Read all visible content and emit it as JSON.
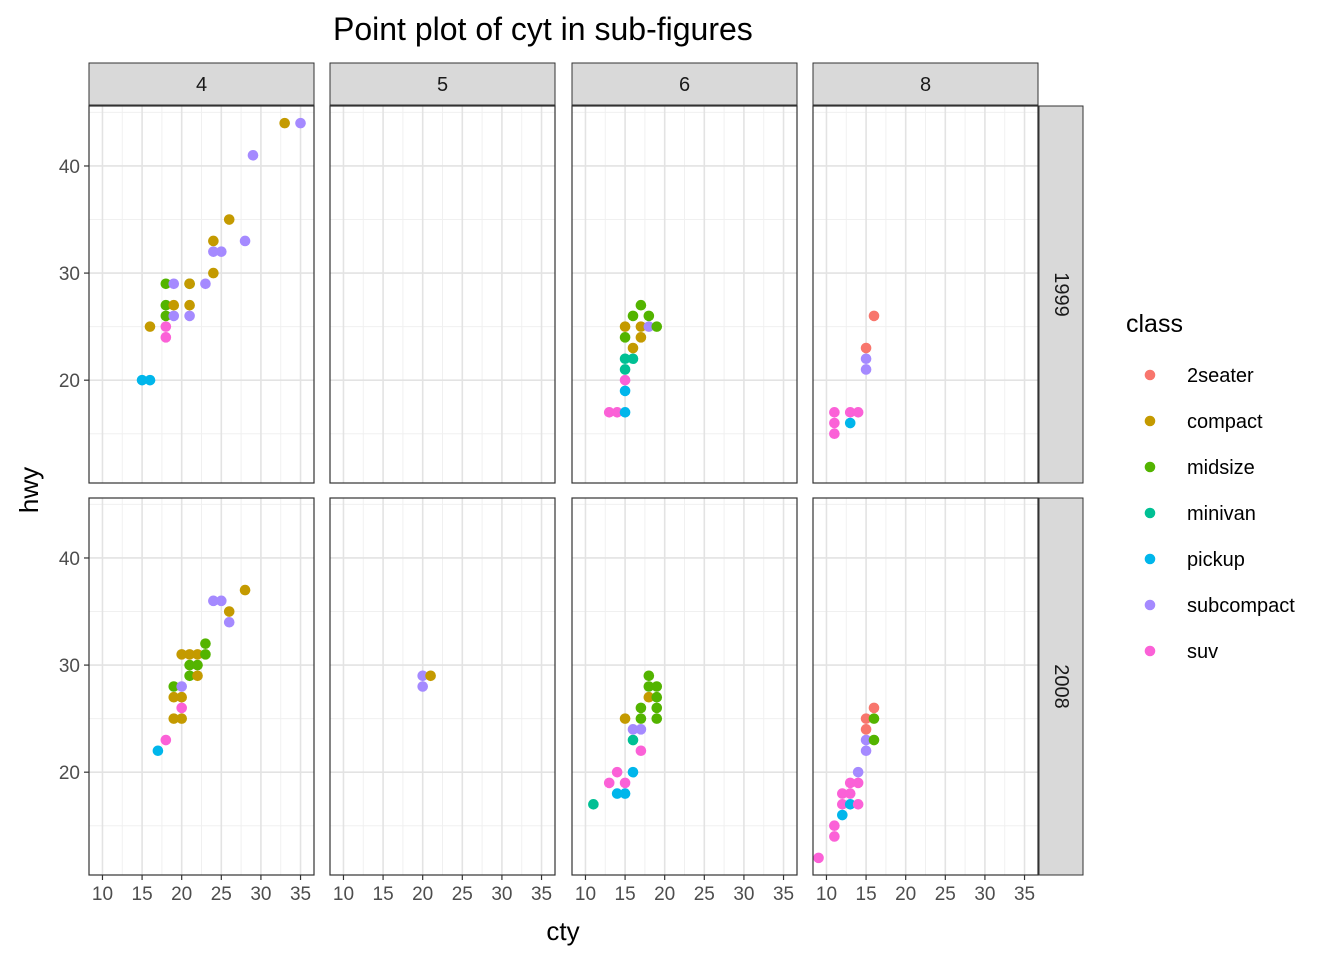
{
  "chart_data": {
    "type": "scatter",
    "title": "Point plot of cyt in sub-figures",
    "xlabel": "cty",
    "ylabel": "hwy",
    "xlim": [
      8.3,
      36.7
    ],
    "ylim": [
      10.4,
      45.6
    ],
    "xticks": [
      10,
      15,
      20,
      25,
      30,
      35
    ],
    "yticks": [
      20,
      30,
      40
    ],
    "grid": true,
    "facet_cols": [
      "4",
      "5",
      "6",
      "8"
    ],
    "facet_rows": [
      "1999",
      "2008"
    ],
    "legend": {
      "title": "class",
      "position": "right",
      "items": [
        {
          "name": "2seater",
          "color": "#F8766D"
        },
        {
          "name": "compact",
          "color": "#C49A00"
        },
        {
          "name": "midsize",
          "color": "#53B400"
        },
        {
          "name": "minivan",
          "color": "#00C094"
        },
        {
          "name": "pickup",
          "color": "#00B6EB"
        },
        {
          "name": "subcompact",
          "color": "#A58AFF"
        },
        {
          "name": "suv",
          "color": "#FB61D7"
        }
      ]
    },
    "panels": [
      {
        "cyl": "4",
        "year": "1999",
        "points": [
          [
            15,
            20,
            "pickup"
          ],
          [
            16,
            20,
            "pickup"
          ],
          [
            16,
            25,
            "compact"
          ],
          [
            18,
            24,
            "suv"
          ],
          [
            18,
            25,
            "suv"
          ],
          [
            18,
            26,
            "midsize"
          ],
          [
            18,
            27,
            "midsize"
          ],
          [
            18,
            29,
            "midsize"
          ],
          [
            19,
            26,
            "subcompact"
          ],
          [
            19,
            27,
            "compact"
          ],
          [
            19,
            29,
            "subcompact"
          ],
          [
            21,
            26,
            "subcompact"
          ],
          [
            21,
            27,
            "compact"
          ],
          [
            21,
            29,
            "midsize"
          ],
          [
            21,
            29,
            "compact"
          ],
          [
            23,
            29,
            "subcompact"
          ],
          [
            24,
            30,
            "compact"
          ],
          [
            24,
            32,
            "subcompact"
          ],
          [
            25,
            32,
            "subcompact"
          ],
          [
            24,
            33,
            "compact"
          ],
          [
            26,
            35,
            "compact"
          ],
          [
            28,
            33,
            "subcompact"
          ],
          [
            29,
            41,
            "subcompact"
          ],
          [
            33,
            44,
            "compact"
          ],
          [
            35,
            44,
            "subcompact"
          ]
        ]
      },
      {
        "cyl": "5",
        "year": "1999",
        "points": []
      },
      {
        "cyl": "6",
        "year": "1999",
        "points": [
          [
            13,
            17,
            "suv"
          ],
          [
            14,
            17,
            "suv"
          ],
          [
            15,
            17,
            "pickup"
          ],
          [
            15,
            19,
            "pickup"
          ],
          [
            15,
            20,
            "suv"
          ],
          [
            15,
            21,
            "minivan"
          ],
          [
            15,
            22,
            "minivan"
          ],
          [
            16,
            22,
            "minivan"
          ],
          [
            15,
            24,
            "midsize"
          ],
          [
            15,
            25,
            "compact"
          ],
          [
            16,
            23,
            "compact"
          ],
          [
            16,
            26,
            "midsize"
          ],
          [
            17,
            24,
            "compact"
          ],
          [
            17,
            25,
            "compact"
          ],
          [
            17,
            27,
            "midsize"
          ],
          [
            18,
            25,
            "subcompact"
          ],
          [
            18,
            26,
            "midsize"
          ],
          [
            19,
            25,
            "midsize"
          ]
        ]
      },
      {
        "cyl": "8",
        "year": "1999",
        "points": [
          [
            11,
            15,
            "suv"
          ],
          [
            11,
            16,
            "suv"
          ],
          [
            11,
            17,
            "suv"
          ],
          [
            13,
            16,
            "pickup"
          ],
          [
            13,
            17,
            "suv"
          ],
          [
            14,
            17,
            "suv"
          ],
          [
            15,
            21,
            "subcompact"
          ],
          [
            15,
            22,
            "subcompact"
          ],
          [
            15,
            23,
            "2seater"
          ],
          [
            16,
            26,
            "2seater"
          ]
        ]
      },
      {
        "cyl": "4",
        "year": "2008",
        "points": [
          [
            17,
            22,
            "pickup"
          ],
          [
            18,
            23,
            "suv"
          ],
          [
            19,
            25,
            "compact"
          ],
          [
            20,
            25,
            "compact"
          ],
          [
            19,
            27,
            "compact"
          ],
          [
            20,
            26,
            "suv"
          ],
          [
            20,
            27,
            "compact"
          ],
          [
            19,
            28,
            "midsize"
          ],
          [
            20,
            28,
            "subcompact"
          ],
          [
            21,
            29,
            "midsize"
          ],
          [
            22,
            29,
            "compact"
          ],
          [
            21,
            30,
            "midsize"
          ],
          [
            22,
            30,
            "midsize"
          ],
          [
            20,
            31,
            "compact"
          ],
          [
            21,
            31,
            "compact"
          ],
          [
            22,
            31,
            "compact"
          ],
          [
            23,
            31,
            "midsize"
          ],
          [
            23,
            32,
            "midsize"
          ],
          [
            26,
            34,
            "subcompact"
          ],
          [
            26,
            35,
            "compact"
          ],
          [
            24,
            36,
            "subcompact"
          ],
          [
            25,
            36,
            "subcompact"
          ],
          [
            28,
            37,
            "compact"
          ]
        ]
      },
      {
        "cyl": "5",
        "year": "2008",
        "points": [
          [
            20,
            28,
            "subcompact"
          ],
          [
            20,
            29,
            "subcompact"
          ],
          [
            21,
            29,
            "compact"
          ]
        ]
      },
      {
        "cyl": "6",
        "year": "2008",
        "points": [
          [
            11,
            17,
            "minivan"
          ],
          [
            13,
            19,
            "suv"
          ],
          [
            14,
            18,
            "pickup"
          ],
          [
            15,
            18,
            "pickup"
          ],
          [
            14,
            20,
            "suv"
          ],
          [
            15,
            19,
            "suv"
          ],
          [
            16,
            20,
            "pickup"
          ],
          [
            16,
            23,
            "minivan"
          ],
          [
            16,
            24,
            "subcompact"
          ],
          [
            17,
            22,
            "suv"
          ],
          [
            17,
            24,
            "subcompact"
          ],
          [
            15,
            25,
            "compact"
          ],
          [
            17,
            25,
            "midsize"
          ],
          [
            17,
            26,
            "midsize"
          ],
          [
            18,
            27,
            "compact"
          ],
          [
            18,
            28,
            "midsize"
          ],
          [
            18,
            29,
            "midsize"
          ],
          [
            19,
            25,
            "midsize"
          ],
          [
            19,
            26,
            "midsize"
          ],
          [
            19,
            27,
            "midsize"
          ],
          [
            19,
            28,
            "midsize"
          ]
        ]
      },
      {
        "cyl": "8",
        "year": "2008",
        "points": [
          [
            9,
            12,
            "suv"
          ],
          [
            11,
            14,
            "suv"
          ],
          [
            11,
            15,
            "suv"
          ],
          [
            12,
            16,
            "pickup"
          ],
          [
            12,
            17,
            "suv"
          ],
          [
            12,
            18,
            "suv"
          ],
          [
            13,
            17,
            "pickup"
          ],
          [
            13,
            18,
            "suv"
          ],
          [
            13,
            19,
            "suv"
          ],
          [
            14,
            17,
            "suv"
          ],
          [
            14,
            19,
            "suv"
          ],
          [
            14,
            20,
            "subcompact"
          ],
          [
            15,
            22,
            "subcompact"
          ],
          [
            15,
            23,
            "subcompact"
          ],
          [
            15,
            24,
            "2seater"
          ],
          [
            15,
            25,
            "2seater"
          ],
          [
            16,
            23,
            "midsize"
          ],
          [
            16,
            25,
            "midsize"
          ],
          [
            16,
            26,
            "2seater"
          ]
        ]
      }
    ]
  }
}
